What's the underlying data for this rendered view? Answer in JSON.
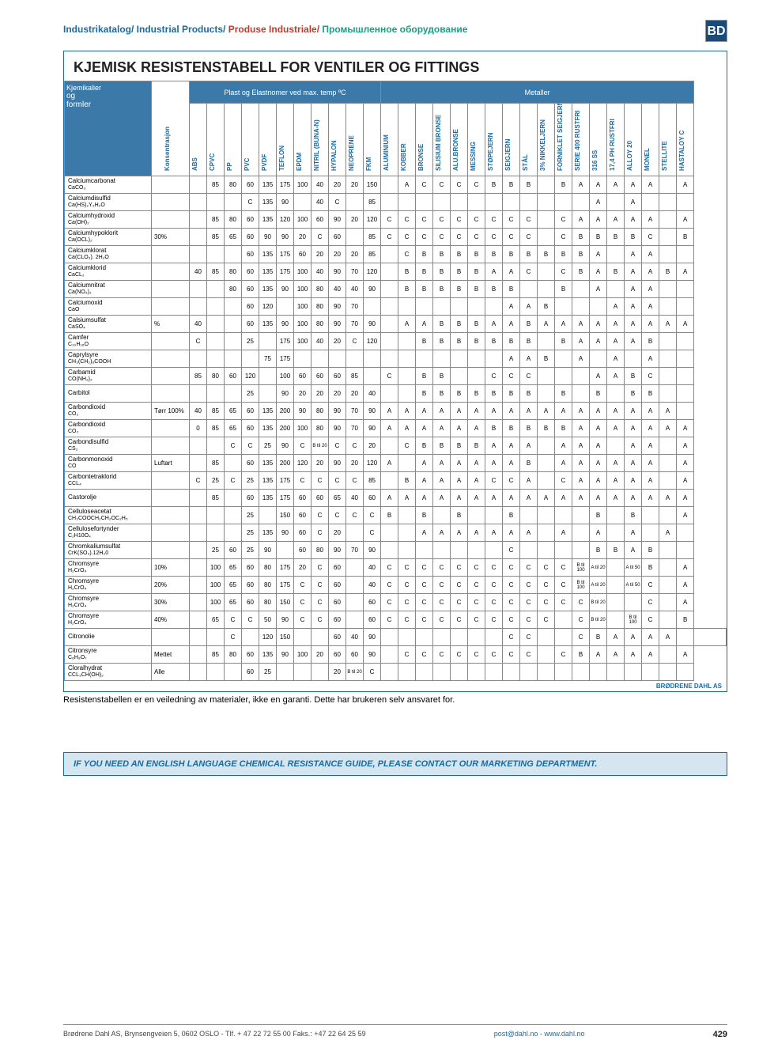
{
  "breadcrumb": {
    "p1": "Industrikatalog/",
    "p2": " Industrial Products/",
    "p3": " Produse Industriale/",
    "p4": " Промышленное оборудование"
  },
  "logo": "BD",
  "title": "KJEMISK RESISTENSTABELL FOR VENTILER OG FITTINGS",
  "rowhead": {
    "l1": "Kjemikalier",
    "l2": "og",
    "l3": "formler"
  },
  "group1": "Plast og Elastnomer ved max. temp ºC",
  "group2": "Metaller",
  "col_conc": "Konsentrasjon",
  "materials": [
    "ABS",
    "CPVC",
    "PP",
    "PVC",
    "PVDF",
    "TEFLON",
    "EPDM",
    "NITRIL (BUNA-N)",
    "HYPALON",
    "NEOPRENE",
    "FKM",
    "ALUMINIUM",
    "KOBBER",
    "BRONSE",
    "SILISIUM BRONSE",
    "ALU.BRONSE",
    "MESSING",
    "STØPEJERN",
    "SEIGJERN",
    "STÅL",
    "3% NIKKELJERN",
    "FORNIKLET SEIGJERN",
    "SERIE 400 RUSTFRI",
    "316 SS",
    "17,4 PH RUSTFRI",
    "ALLOY 20",
    "MONEL",
    "STELLITE",
    "HASTALOY C"
  ],
  "rows": [
    {
      "n": "Calciumcarbonat",
      "f": "CaCO₃",
      "c": "",
      "v": [
        "",
        "85",
        "80",
        "60",
        "135",
        "175",
        "100",
        "40",
        "20",
        "20",
        "150",
        "",
        "A",
        "C",
        "C",
        "C",
        "C",
        "B",
        "B",
        "B",
        "",
        "B",
        "A",
        "A",
        "A",
        "A",
        "A",
        "",
        "A"
      ]
    },
    {
      "n": "Calciumdisulfid",
      "f": "Ca(HS)₂Y₃H₂O",
      "c": "",
      "v": [
        "",
        "",
        "",
        "C",
        "135",
        "90",
        "",
        "40",
        "C",
        "",
        "85",
        "",
        "",
        "",
        "",
        "",
        "",
        "",
        "",
        "",
        "",
        "",
        "",
        "A",
        "",
        "A",
        "",
        "",
        ""
      ]
    },
    {
      "n": "Calciumhydroxid",
      "f": "Ca(OH)₂",
      "c": "",
      "v": [
        "",
        "85",
        "80",
        "60",
        "135",
        "120",
        "100",
        "60",
        "90",
        "20",
        "120",
        "C",
        "C",
        "C",
        "C",
        "C",
        "C",
        "C",
        "C",
        "C",
        "",
        "C",
        "A",
        "A",
        "A",
        "A",
        "A",
        "",
        "A"
      ]
    },
    {
      "n": "Calciumhypoklorit",
      "f": "Ca(OCL)₂",
      "c": "30%",
      "v": [
        "",
        "85",
        "65",
        "60",
        "90",
        "90",
        "20",
        "C",
        "60",
        "",
        "85",
        "C",
        "C",
        "C",
        "C",
        "C",
        "C",
        "C",
        "C",
        "C",
        "",
        "C",
        "B",
        "B",
        "B",
        "B",
        "C",
        "",
        "B"
      ]
    },
    {
      "n": "Calciumklorat",
      "f": "Ca(CLO₃). 2H₂O",
      "c": "",
      "v": [
        "",
        "",
        "",
        "60",
        "135",
        "175",
        "60",
        "20",
        "20",
        "20",
        "85",
        "",
        "C",
        "B",
        "B",
        "B",
        "B",
        "B",
        "B",
        "B",
        "B",
        "B",
        "B",
        "A",
        "",
        "A",
        "A",
        "",
        ""
      ]
    },
    {
      "n": "Calciumklorid",
      "f": "CaCL₂",
      "c": "",
      "v": [
        "40",
        "85",
        "80",
        "60",
        "135",
        "175",
        "100",
        "40",
        "90",
        "70",
        "120",
        "",
        "B",
        "B",
        "B",
        "B",
        "B",
        "A",
        "A",
        "C",
        "",
        "C",
        "B",
        "A",
        "B",
        "A",
        "A",
        "B",
        "A"
      ]
    },
    {
      "n": "Calciumnitrat",
      "f": "Ca(NO₃)₂",
      "c": "",
      "v": [
        "",
        "",
        "80",
        "60",
        "135",
        "90",
        "100",
        "80",
        "40",
        "40",
        "90",
        "",
        "B",
        "B",
        "B",
        "B",
        "B",
        "B",
        "B",
        "",
        "",
        "B",
        "",
        "A",
        "",
        "A",
        "A",
        "",
        ""
      ]
    },
    {
      "n": "Calciumoxid",
      "f": "CaO",
      "c": "",
      "v": [
        "",
        "",
        "",
        "60",
        "120",
        "",
        "100",
        "80",
        "90",
        "70",
        "",
        "",
        "",
        "",
        "",
        "",
        "",
        "",
        "A",
        "A",
        "B",
        "",
        "",
        "",
        "A",
        "A",
        "A",
        "",
        ""
      ]
    },
    {
      "n": "Calsiumsulfat",
      "f": "CaSO₄",
      "c": "%",
      "v": [
        "40",
        "",
        "",
        "60",
        "135",
        "90",
        "100",
        "80",
        "90",
        "70",
        "90",
        "",
        "A",
        "A",
        "B",
        "B",
        "B",
        "A",
        "A",
        "B",
        "A",
        "A",
        "A",
        "A",
        "A",
        "A",
        "A",
        "A",
        "A"
      ]
    },
    {
      "n": "Camfer",
      "f": "C₁₀H₁₆O",
      "c": "",
      "v": [
        "C",
        "",
        "",
        "25",
        "",
        "175",
        "100",
        "40",
        "20",
        "C",
        "120",
        "",
        "",
        "B",
        "B",
        "B",
        "B",
        "B",
        "B",
        "B",
        "",
        "B",
        "A",
        "A",
        "A",
        "A",
        "B",
        "",
        ""
      ]
    },
    {
      "n": "Caprylsyre",
      "f": "CH₃(CH₂)₆COOH",
      "c": "",
      "v": [
        "",
        "",
        "",
        "",
        "75",
        "175",
        "",
        "",
        "",
        "",
        "",
        "",
        "",
        "",
        "",
        "",
        "",
        "",
        "A",
        "A",
        "B",
        "",
        "A",
        "",
        "A",
        "",
        "A",
        "",
        ""
      ]
    },
    {
      "n": "Carbamid",
      "f": "CO(NH₂)₂",
      "c": "",
      "v": [
        "85",
        "80",
        "60",
        "120",
        "",
        "100",
        "60",
        "60",
        "60",
        "85",
        "",
        "C",
        "",
        "B",
        "B",
        "",
        "",
        "C",
        "C",
        "C",
        "",
        "",
        "",
        "A",
        "A",
        "B",
        "C",
        "",
        ""
      ]
    },
    {
      "n": "Carbitol",
      "f": "",
      "c": "",
      "v": [
        "",
        "",
        "",
        "25",
        "",
        "90",
        "20",
        "20",
        "20",
        "20",
        "40",
        "",
        "",
        "B",
        "B",
        "B",
        "B",
        "B",
        "B",
        "B",
        "",
        "B",
        "",
        "B",
        "",
        "B",
        "B",
        "",
        ""
      ]
    },
    {
      "n": "Carbondioxid",
      "f": "CO₂",
      "c": "Tørr 100%",
      "v": [
        "40",
        "85",
        "65",
        "60",
        "135",
        "200",
        "90",
        "80",
        "90",
        "70",
        "90",
        "A",
        "A",
        "A",
        "A",
        "A",
        "A",
        "A",
        "A",
        "A",
        "A",
        "A",
        "A",
        "A",
        "A",
        "A",
        "A",
        "A",
        ""
      ]
    },
    {
      "n": "Carbondioxid",
      "f": "CO₂",
      "c": "",
      "v": [
        "0",
        "85",
        "65",
        "60",
        "135",
        "200",
        "100",
        "80",
        "90",
        "70",
        "90",
        "A",
        "A",
        "A",
        "A",
        "A",
        "A",
        "B",
        "B",
        "B",
        "B",
        "B",
        "A",
        "A",
        "A",
        "A",
        "A",
        "A",
        "A"
      ]
    },
    {
      "n": "Carbondisulfid",
      "f": "CS₂",
      "c": "",
      "v": [
        "",
        "",
        "C",
        "C",
        "25",
        "90",
        "C",
        "B til 20",
        "C",
        "C",
        "20",
        "",
        "C",
        "B",
        "B",
        "B",
        "B",
        "A",
        "A",
        "A",
        "",
        "A",
        "A",
        "A",
        "",
        "A",
        "A",
        "",
        "A"
      ]
    },
    {
      "n": "Carbonmonoxid",
      "f": "CO",
      "c": "Luftart",
      "v": [
        "",
        "85",
        "",
        "60",
        "135",
        "200",
        "120",
        "20",
        "90",
        "20",
        "120",
        "A",
        "",
        "A",
        "A",
        "A",
        "A",
        "A",
        "A",
        "B",
        "",
        "A",
        "A",
        "A",
        "A",
        "A",
        "A",
        "",
        "A"
      ]
    },
    {
      "n": "Carbontetraklorid",
      "f": "CCL₄",
      "c": "",
      "v": [
        "C",
        "25",
        "C",
        "25",
        "135",
        "175",
        "C",
        "C",
        "C",
        "C",
        "85",
        "",
        "B",
        "A",
        "A",
        "A",
        "A",
        "C",
        "C",
        "A",
        "",
        "C",
        "A",
        "A",
        "A",
        "A",
        "A",
        "",
        "A"
      ]
    },
    {
      "n": "Castorolje",
      "f": "",
      "c": "",
      "v": [
        "",
        "85",
        "",
        "60",
        "135",
        "175",
        "60",
        "60",
        "65",
        "40",
        "60",
        "A",
        "A",
        "A",
        "A",
        "A",
        "A",
        "A",
        "A",
        "A",
        "A",
        "A",
        "A",
        "A",
        "A",
        "A",
        "A",
        "A",
        "A"
      ]
    },
    {
      "n": "Celluloseacetat",
      "f": "CH₃COOCH₂CH₂OC₂H₅",
      "c": "",
      "v": [
        "",
        "",
        "",
        "25",
        "",
        "150",
        "60",
        "C",
        "C",
        "C",
        "C",
        "B",
        "",
        "B",
        "",
        "B",
        "",
        "",
        "B",
        "",
        "",
        "",
        "",
        "B",
        "",
        "B",
        "",
        "",
        "A"
      ]
    },
    {
      "n": "Cellulosefortynder",
      "f": "C₂H10O₄",
      "c": "",
      "v": [
        "",
        "",
        "",
        "25",
        "135",
        "90",
        "60",
        "C",
        "20",
        "",
        "C",
        "",
        "",
        "A",
        "A",
        "A",
        "A",
        "A",
        "A",
        "A",
        "",
        "A",
        "",
        "A",
        "",
        "A",
        "",
        "A",
        ""
      ]
    },
    {
      "n": "Chromkaliumsulfat",
      "f": "CrK(SO₄).12H₂0",
      "c": "",
      "v": [
        "",
        "25",
        "60",
        "25",
        "90",
        "",
        "60",
        "80",
        "90",
        "70",
        "90",
        "",
        "",
        "",
        "",
        "",
        "",
        "",
        "C",
        "",
        "",
        "",
        "",
        "B",
        "B",
        "A",
        "B",
        "",
        ""
      ]
    },
    {
      "n": "Chromsyre",
      "f": "H₂CrO₄",
      "c": "10%",
      "v": [
        "",
        "100",
        "65",
        "60",
        "80",
        "175",
        "20",
        "C",
        "60",
        "",
        "40",
        "C",
        "C",
        "C",
        "C",
        "C",
        "C",
        "C",
        "C",
        "C",
        "C",
        "C",
        "B til 100",
        "A til 20",
        "",
        "A til 50",
        "B",
        "",
        "A"
      ]
    },
    {
      "n": "Chromsyre",
      "f": "H₂CrO₄",
      "c": "20%",
      "v": [
        "",
        "100",
        "65",
        "60",
        "80",
        "175",
        "C",
        "C",
        "60",
        "",
        "40",
        "C",
        "C",
        "C",
        "C",
        "C",
        "C",
        "C",
        "C",
        "C",
        "C",
        "C",
        "B til 100",
        "A til 20",
        "",
        "A til 50",
        "C",
        "",
        "A"
      ]
    },
    {
      "n": "Chromsyre",
      "f": "H₂CrO₄",
      "c": "30%",
      "v": [
        "",
        "100",
        "65",
        "60",
        "80",
        "150",
        "C",
        "C",
        "60",
        "",
        "60",
        "C",
        "C",
        "C",
        "C",
        "C",
        "C",
        "C",
        "C",
        "C",
        "C",
        "C",
        "C",
        "B til 20",
        "",
        "",
        "C",
        "",
        "A"
      ]
    },
    {
      "n": "Chromsyre",
      "f": "H₂CrO₄",
      "c": "40%",
      "v": [
        "",
        "65",
        "C",
        "C",
        "50",
        "90",
        "C",
        "C",
        "60",
        "",
        "60",
        "C",
        "C",
        "C",
        "C",
        "C",
        "C",
        "C",
        "C",
        "C",
        "C",
        "",
        "C",
        "B til 20",
        "",
        "B til 100",
        "C",
        "",
        "B"
      ]
    },
    {
      "n": "Citronolie",
      "f": "",
      "c": "",
      "v": [
        "",
        "",
        "C",
        "",
        "120",
        "150",
        "",
        "",
        "60",
        "40",
        "90",
        "",
        "",
        "",
        "",
        "",
        "",
        "",
        "C",
        "C",
        "",
        "",
        "C",
        "B",
        "A",
        "A",
        "A",
        "A",
        "",
        ""
      ]
    },
    {
      "n": "Citronsyre",
      "f": "C₆H₈O₇",
      "c": "Mettet",
      "v": [
        "",
        "85",
        "80",
        "60",
        "135",
        "90",
        "100",
        "20",
        "60",
        "60",
        "90",
        "",
        "C",
        "C",
        "C",
        "C",
        "C",
        "C",
        "C",
        "C",
        "",
        "C",
        "B",
        "A",
        "A",
        "A",
        "A",
        "",
        "A"
      ]
    },
    {
      "n": "Cloralhydrat",
      "f": "CCL₃CH(OH)₂",
      "c": "Alle",
      "v": [
        "",
        "",
        "",
        "60",
        "25",
        "",
        "",
        "",
        "20",
        "B til 20",
        "C",
        "",
        "",
        "",
        "",
        "",
        "",
        "",
        "",
        "",
        "",
        "",
        "",
        "",
        "",
        "",
        "",
        "",
        ""
      ]
    }
  ],
  "footer_brand": "BRØDRENE DAHL AS",
  "disclaimer": "Resistenstabellen er en veiledning av materialer, ikke en garanti. Dette har brukeren selv ansvaret for.",
  "english_note": "IF YOU NEED AN ENGLISH LANGUAGE CHEMICAL RESISTANCE GUIDE, PLEASE CONTACT OUR MARKETING DEPARTMENT.",
  "bottom": {
    "addr": "Brødrene Dahl AS, Brynsengveien 5, 0602 OSLO - Tlf. + 47 22 72 55 00 Faks.: +47 22 64 25 59",
    "mail": "post@dahl.no - www.dahl.no",
    "page": "429"
  }
}
